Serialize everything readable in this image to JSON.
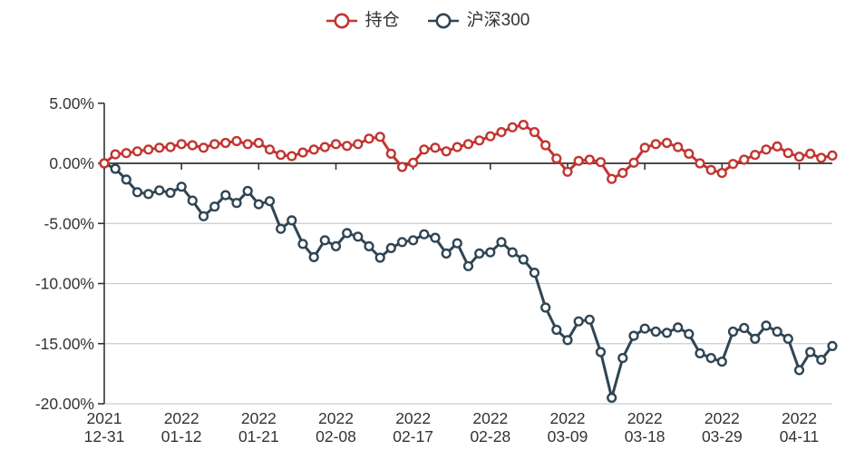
{
  "legend": {
    "items": [
      {
        "label": "持仓",
        "color": "#c23531",
        "icon": "line-with-open-circle"
      },
      {
        "label": "沪深300",
        "color": "#2f4554",
        "icon": "line-with-open-circle"
      }
    ]
  },
  "colors": {
    "series_red": "#c23531",
    "series_blue": "#2f4554",
    "axis_line": "#333333",
    "grid_line": "#cccccc",
    "tick_text": "#333333"
  },
  "chart_data": {
    "type": "line",
    "title": "",
    "xlabel": "",
    "ylabel": "",
    "grid": true,
    "legend_position": "top-center",
    "marker": "open-circle",
    "ylim": [
      -20,
      5
    ],
    "y_ticks": [
      {
        "value": 5,
        "label": "5.00%"
      },
      {
        "value": 0,
        "label": "0.00%"
      },
      {
        "value": -5,
        "label": "-5.00%"
      },
      {
        "value": -10,
        "label": "-10.00%"
      },
      {
        "value": -15,
        "label": "-15.00%"
      },
      {
        "value": -20,
        "label": "-20.00%"
      }
    ],
    "x": [
      "2021-12-31",
      "2022-01-04",
      "2022-01-05",
      "2022-01-06",
      "2022-01-07",
      "2022-01-10",
      "2022-01-11",
      "2022-01-12",
      "2022-01-13",
      "2022-01-14",
      "2022-01-17",
      "2022-01-18",
      "2022-01-19",
      "2022-01-20",
      "2022-01-21",
      "2022-01-24",
      "2022-01-25",
      "2022-01-26",
      "2022-01-27",
      "2022-01-28",
      "2022-02-07",
      "2022-02-08",
      "2022-02-09",
      "2022-02-10",
      "2022-02-11",
      "2022-02-14",
      "2022-02-15",
      "2022-02-16",
      "2022-02-17",
      "2022-02-18",
      "2022-02-21",
      "2022-02-22",
      "2022-02-23",
      "2022-02-24",
      "2022-02-25",
      "2022-02-28",
      "2022-03-01",
      "2022-03-02",
      "2022-03-03",
      "2022-03-04",
      "2022-03-07",
      "2022-03-08",
      "2022-03-09",
      "2022-03-10",
      "2022-03-11",
      "2022-03-14",
      "2022-03-15",
      "2022-03-16",
      "2022-03-17",
      "2022-03-18",
      "2022-03-21",
      "2022-03-22",
      "2022-03-23",
      "2022-03-24",
      "2022-03-25",
      "2022-03-28",
      "2022-03-29",
      "2022-03-30",
      "2022-03-31",
      "2022-04-01",
      "2022-04-06",
      "2022-04-07",
      "2022-04-08",
      "2022-04-11",
      "2022-04-12",
      "2022-04-13",
      "2022-04-14"
    ],
    "x_ticks": [
      {
        "index": 0,
        "line1": "2021",
        "line2": "12-31"
      },
      {
        "index": 7,
        "line1": "2022",
        "line2": "01-12"
      },
      {
        "index": 14,
        "line1": "2022",
        "line2": "01-21"
      },
      {
        "index": 21,
        "line1": "2022",
        "line2": "02-08"
      },
      {
        "index": 28,
        "line1": "2022",
        "line2": "02-17"
      },
      {
        "index": 35,
        "line1": "2022",
        "line2": "02-28"
      },
      {
        "index": 42,
        "line1": "2022",
        "line2": "03-09"
      },
      {
        "index": 49,
        "line1": "2022",
        "line2": "03-18"
      },
      {
        "index": 56,
        "line1": "2022",
        "line2": "03-29"
      },
      {
        "index": 63,
        "line1": "2022",
        "line2": "04-11"
      }
    ],
    "series": [
      {
        "name": "持仓",
        "color": "#c23531",
        "unit": "%",
        "values": [
          0.0,
          0.75,
          0.85,
          1.0,
          1.15,
          1.3,
          1.35,
          1.6,
          1.5,
          1.3,
          1.6,
          1.7,
          1.85,
          1.6,
          1.7,
          1.15,
          0.7,
          0.6,
          0.9,
          1.15,
          1.35,
          1.6,
          1.45,
          1.6,
          2.05,
          2.2,
          0.8,
          -0.3,
          0.05,
          1.15,
          1.3,
          1.0,
          1.35,
          1.6,
          1.9,
          2.25,
          2.6,
          3.0,
          3.2,
          2.6,
          1.5,
          0.4,
          -0.7,
          0.2,
          0.3,
          0.1,
          -1.3,
          -0.8,
          0.05,
          1.3,
          1.6,
          1.7,
          1.35,
          0.8,
          0.0,
          -0.55,
          -0.8,
          -0.05,
          0.3,
          0.7,
          1.15,
          1.4,
          0.85,
          0.55,
          0.8,
          0.45,
          0.65
        ]
      },
      {
        "name": "沪深300",
        "color": "#2f4554",
        "unit": "%",
        "values": [
          0.0,
          -0.45,
          -1.35,
          -2.4,
          -2.55,
          -2.25,
          -2.45,
          -1.95,
          -3.1,
          -4.4,
          -3.6,
          -2.65,
          -3.3,
          -2.3,
          -3.4,
          -3.15,
          -5.45,
          -4.75,
          -6.7,
          -7.8,
          -6.4,
          -6.9,
          -5.8,
          -6.1,
          -6.9,
          -7.85,
          -7.05,
          -6.55,
          -6.4,
          -5.9,
          -6.2,
          -7.5,
          -6.65,
          -8.55,
          -7.5,
          -7.4,
          -6.55,
          -7.4,
          -8.0,
          -9.1,
          -12.0,
          -13.85,
          -14.7,
          -13.15,
          -13.0,
          -15.7,
          -19.5,
          -16.2,
          -14.35,
          -13.75,
          -14.0,
          -14.1,
          -13.65,
          -14.2,
          -15.8,
          -16.2,
          -16.5,
          -14.0,
          -13.7,
          -14.6,
          -13.5,
          -14.0,
          -14.6,
          -17.2,
          -15.7,
          -16.35,
          -15.2
        ]
      }
    ]
  }
}
